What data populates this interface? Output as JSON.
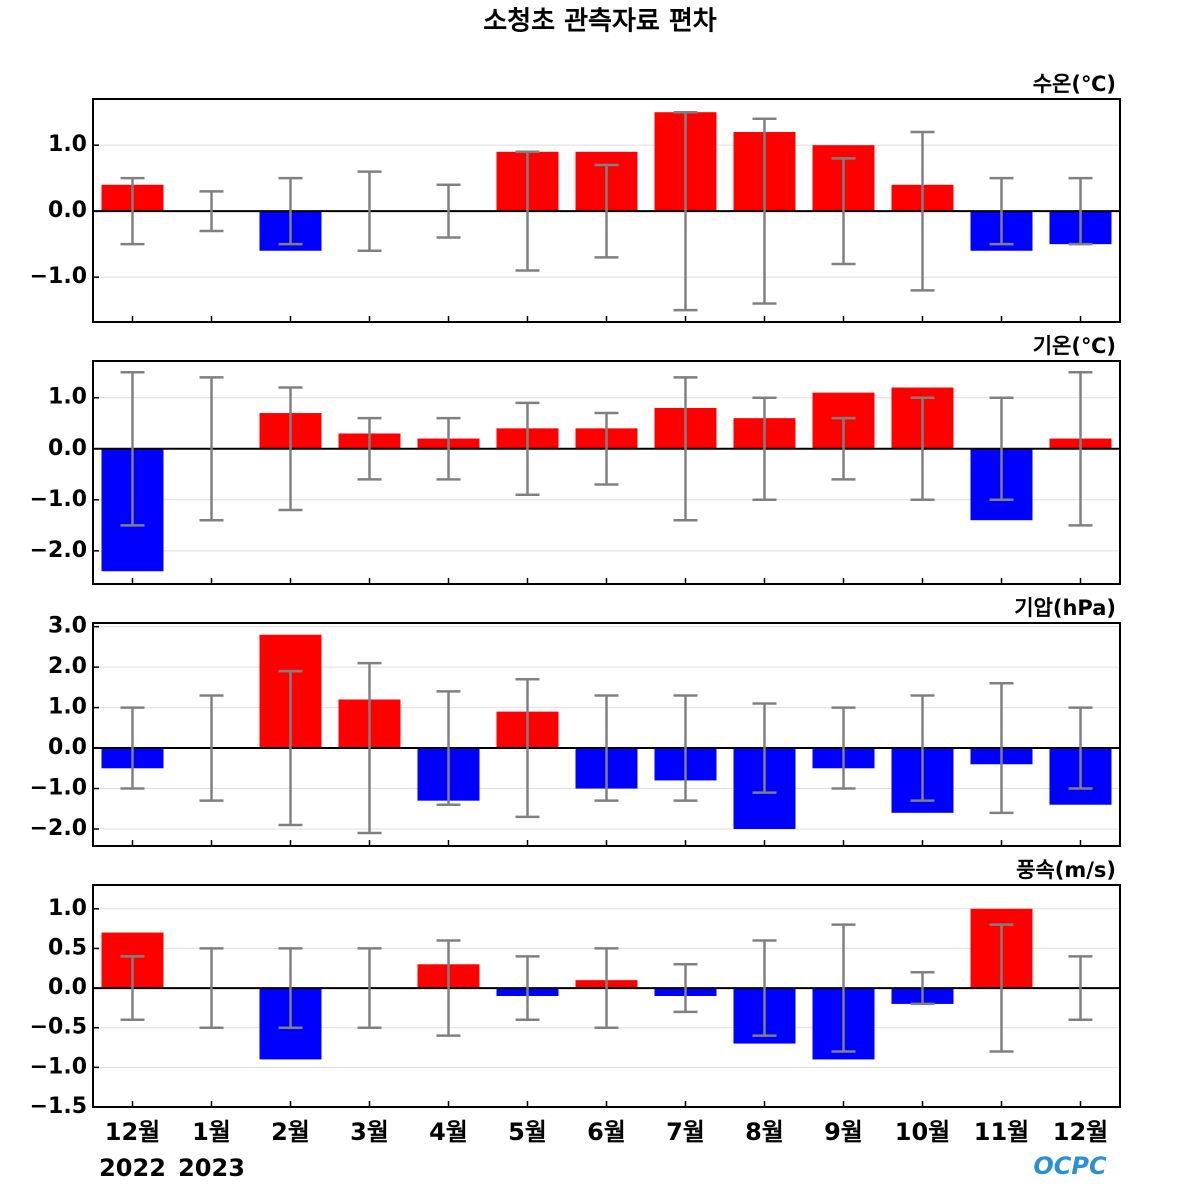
{
  "title": "소청초 관측자료 편차",
  "logo": "OCPC",
  "chart_data": [
    {
      "type": "bar",
      "title": "수온(℃)",
      "values": [
        0.4,
        0,
        -0.6,
        0,
        0,
        0.9,
        0.9,
        1.5,
        1.2,
        1.0,
        0.4,
        -0.6,
        -0.5
      ],
      "errors": [
        0.5,
        0.3,
        0.5,
        0.6,
        0.4,
        0.9,
        0.7,
        1.5,
        1.4,
        0.8,
        1.2,
        0.5,
        0.5
      ],
      "ylim": [
        -1.68,
        1.7
      ],
      "yticks": [
        {
          "value": -1,
          "label": "−1.0"
        },
        {
          "value": 0,
          "label": "0.0"
        },
        {
          "value": 1,
          "label": "1.0"
        }
      ],
      "grid": true,
      "positive_color": "#ff0000",
      "negative_color": "#0000ff",
      "error_color": "#808080"
    },
    {
      "type": "bar",
      "title": "기온(℃)",
      "values": [
        -2.4,
        0,
        0.7,
        0.3,
        0.2,
        0.4,
        0.4,
        0.8,
        0.6,
        1.1,
        1.2,
        -1.4,
        0.2
      ],
      "errors": [
        1.5,
        1.4,
        1.2,
        0.6,
        0.6,
        0.9,
        0.7,
        1.4,
        1.0,
        0.6,
        1.0,
        1.0,
        1.5
      ],
      "ylim": [
        -2.65,
        1.72
      ],
      "yticks": [
        {
          "value": -2,
          "label": "−2.0"
        },
        {
          "value": -1,
          "label": "−1.0"
        },
        {
          "value": 0,
          "label": "0.0"
        },
        {
          "value": 1,
          "label": "1.0"
        }
      ],
      "grid": true,
      "positive_color": "#ff0000",
      "negative_color": "#0000ff",
      "error_color": "#808080"
    },
    {
      "type": "bar",
      "title": "기압(hPa)",
      "values": [
        -0.5,
        0,
        2.8,
        1.2,
        -1.3,
        0.9,
        -1.0,
        -0.8,
        -2.0,
        -0.5,
        -1.6,
        -0.4,
        -1.4
      ],
      "errors": [
        1.0,
        1.3,
        1.9,
        2.1,
        1.4,
        1.7,
        1.3,
        1.3,
        1.1,
        1.0,
        1.3,
        1.6,
        1.0
      ],
      "ylim": [
        -2.42,
        3.09
      ],
      "yticks": [
        {
          "value": -2,
          "label": "−2.0"
        },
        {
          "value": -1,
          "label": "−1.0"
        },
        {
          "value": 0,
          "label": "0.0"
        },
        {
          "value": 1,
          "label": "1.0"
        },
        {
          "value": 2,
          "label": "2.0"
        },
        {
          "value": 3,
          "label": "3.0"
        }
      ],
      "grid": true,
      "positive_color": "#ff0000",
      "negative_color": "#0000ff",
      "error_color": "#808080"
    },
    {
      "type": "bar",
      "title": "풍속(m/s)",
      "categories": [
        "12월",
        "1월",
        "2월",
        "3월",
        "4월",
        "5월",
        "6월",
        "7월",
        "8월",
        "9월",
        "10월",
        "11월",
        "12월"
      ],
      "category_years": [
        "2022",
        "2023",
        null,
        null,
        null,
        null,
        null,
        null,
        null,
        null,
        null,
        null,
        null
      ],
      "values": [
        0.7,
        0,
        -0.9,
        0,
        0.3,
        -0.1,
        0.1,
        -0.1,
        -0.7,
        -0.9,
        -0.2,
        1.0,
        0
      ],
      "errors": [
        0.4,
        0.5,
        0.5,
        0.5,
        0.6,
        0.4,
        0.5,
        0.3,
        0.6,
        0.8,
        0.2,
        0.8,
        0.4
      ],
      "ylim": [
        -1.5,
        1.3
      ],
      "yticks": [
        {
          "value": -1.5,
          "label": "−1.5"
        },
        {
          "value": -1,
          "label": "−1.0"
        },
        {
          "value": -0.5,
          "label": "−0.5"
        },
        {
          "value": 0,
          "label": "0.0"
        },
        {
          "value": 0.5,
          "label": "0.5"
        },
        {
          "value": 1,
          "label": "1.0"
        }
      ],
      "grid": true,
      "positive_color": "#ff0000",
      "negative_color": "#0000ff",
      "error_color": "#808080"
    }
  ]
}
